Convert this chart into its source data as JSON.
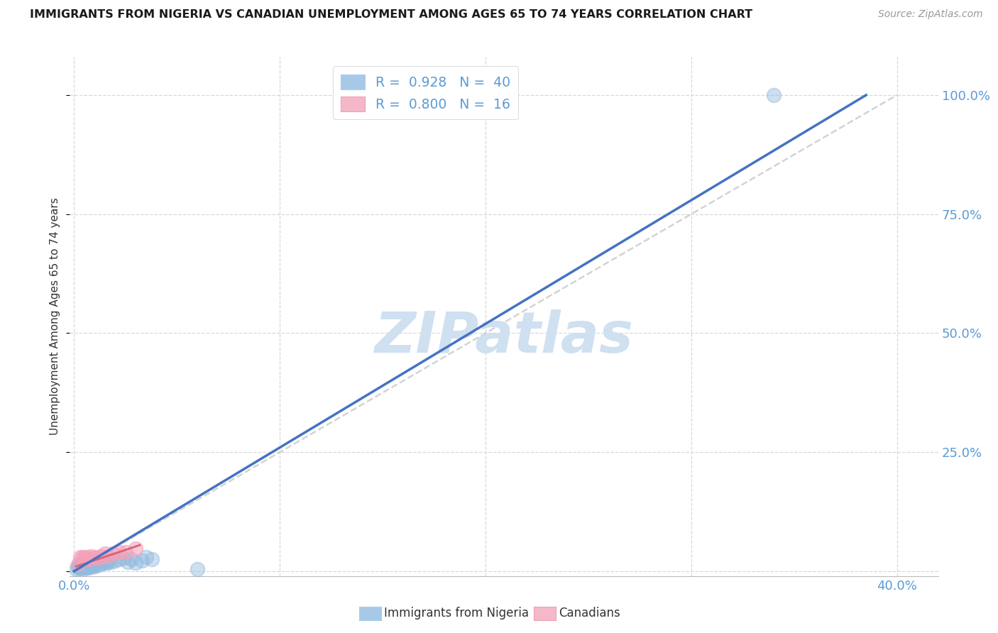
{
  "title": "IMMIGRANTS FROM NIGERIA VS CANADIAN UNEMPLOYMENT AMONG AGES 65 TO 74 YEARS CORRELATION CHART",
  "source": "Source: ZipAtlas.com",
  "ylabel": "Unemployment Among Ages 65 to 74 years",
  "xlim": [
    -0.002,
    0.42
  ],
  "ylim": [
    -0.01,
    1.08
  ],
  "xtick_positions": [
    0.0,
    0.1,
    0.2,
    0.3,
    0.4
  ],
  "xticklabels": [
    "0.0%",
    "",
    "",
    "",
    "40.0%"
  ],
  "ytick_positions": [
    0.0,
    0.25,
    0.5,
    0.75,
    1.0
  ],
  "yticklabels_right": [
    "",
    "25.0%",
    "50.0%",
    "75.0%",
    "100.0%"
  ],
  "legend_line1": "R =  0.928   N =  40",
  "legend_line2": "R =  0.800   N =  16",
  "watermark": "ZIPatlas",
  "blue_scatter_x": [
    0.001,
    0.002,
    0.002,
    0.003,
    0.003,
    0.003,
    0.004,
    0.004,
    0.005,
    0.005,
    0.005,
    0.006,
    0.006,
    0.007,
    0.007,
    0.008,
    0.008,
    0.009,
    0.009,
    0.01,
    0.01,
    0.011,
    0.012,
    0.013,
    0.014,
    0.015,
    0.016,
    0.017,
    0.018,
    0.02,
    0.022,
    0.024,
    0.026,
    0.028,
    0.03,
    0.033,
    0.035,
    0.038,
    0.06,
    0.34
  ],
  "blue_scatter_y": [
    0.005,
    0.008,
    0.01,
    0.006,
    0.008,
    0.012,
    0.008,
    0.01,
    0.006,
    0.009,
    0.011,
    0.008,
    0.012,
    0.01,
    0.008,
    0.012,
    0.015,
    0.01,
    0.015,
    0.012,
    0.01,
    0.018,
    0.014,
    0.018,
    0.016,
    0.02,
    0.018,
    0.022,
    0.02,
    0.022,
    0.025,
    0.028,
    0.02,
    0.025,
    0.018,
    0.022,
    0.03,
    0.025,
    0.005,
    1.0
  ],
  "pink_scatter_x": [
    0.002,
    0.003,
    0.004,
    0.005,
    0.006,
    0.007,
    0.008,
    0.01,
    0.011,
    0.013,
    0.015,
    0.016,
    0.019,
    0.022,
    0.025,
    0.03
  ],
  "pink_scatter_y": [
    0.015,
    0.03,
    0.028,
    0.03,
    0.028,
    0.025,
    0.032,
    0.03,
    0.028,
    0.032,
    0.038,
    0.032,
    0.038,
    0.04,
    0.04,
    0.048
  ],
  "blue_line_x": [
    0.0,
    0.385
  ],
  "blue_line_y": [
    0.0,
    1.0
  ],
  "pink_line_x": [
    0.001,
    0.032
  ],
  "pink_line_y": [
    0.01,
    0.055
  ],
  "diag_line_x": [
    0.0,
    0.4
  ],
  "diag_line_y": [
    0.0,
    1.0
  ],
  "scatter_blue_color": "#92bbde",
  "scatter_pink_color": "#f4a0b8",
  "line_blue_color": "#4472c4",
  "line_pink_color": "#d9607a",
  "line_diag_color": "#c8c8c8",
  "bg_color": "#ffffff",
  "grid_color": "#d8d8d8",
  "title_color": "#1a1a1a",
  "right_axis_color": "#5b9bd5",
  "watermark_color": "#cfe0f0",
  "legend_text_color": "#5b9bd5",
  "bottom_label_blue": "Immigrants from Nigeria",
  "bottom_label_pink": "Canadians",
  "legend_blue_patch": "#a8c8e8",
  "legend_pink_patch": "#f4b8c8",
  "figsize": [
    14.06,
    8.92
  ],
  "dpi": 100
}
